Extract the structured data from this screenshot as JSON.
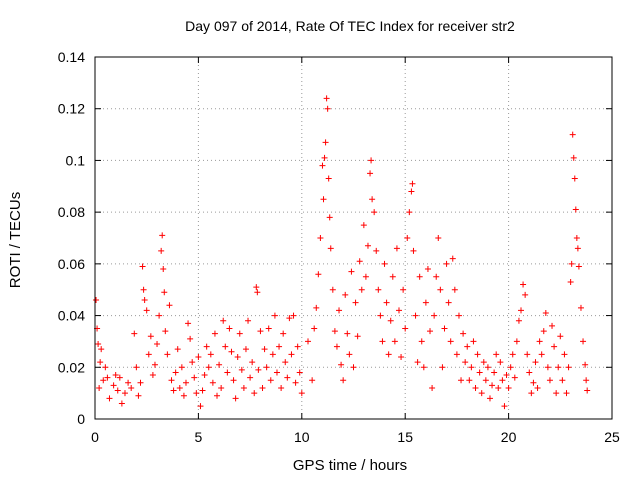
{
  "chart_data": {
    "type": "scatter",
    "title": "Day 097 of 2014, Rate Of TEC Index for receiver str2",
    "xlabel": "GPS time / hours",
    "ylabel": "ROTI / TECUs",
    "xlim": [
      0,
      25
    ],
    "ylim": [
      0,
      0.14
    ],
    "xticks": [
      0,
      5,
      10,
      15,
      20,
      25
    ],
    "xtick_labels": [
      "0",
      "5",
      "10",
      "15",
      "20",
      "25"
    ],
    "yticks": [
      0,
      0.02,
      0.04,
      0.06,
      0.08,
      0.1,
      0.12,
      0.14
    ],
    "ytick_labels": [
      "0",
      "0.02",
      "0.04",
      "0.06",
      "0.08",
      "0.1",
      "0.12",
      "0.14"
    ],
    "grid": true,
    "marker": "+",
    "series": [
      {
        "name": "ROTI",
        "color": "#ff0000",
        "points": [
          [
            0.05,
            0.046
          ],
          [
            0.1,
            0.035
          ],
          [
            0.15,
            0.029
          ],
          [
            0.2,
            0.012
          ],
          [
            0.25,
            0.022
          ],
          [
            0.3,
            0.027
          ],
          [
            0.4,
            0.015
          ],
          [
            0.5,
            0.02
          ],
          [
            0.6,
            0.016
          ],
          [
            0.7,
            0.008
          ],
          [
            0.9,
            0.013
          ],
          [
            1.0,
            0.017
          ],
          [
            1.1,
            0.011
          ],
          [
            1.2,
            0.016
          ],
          [
            1.3,
            0.006
          ],
          [
            1.45,
            0.01
          ],
          [
            1.6,
            0.014
          ],
          [
            1.75,
            0.012
          ],
          [
            1.9,
            0.033
          ],
          [
            2.0,
            0.02
          ],
          [
            2.1,
            0.009
          ],
          [
            2.2,
            0.014
          ],
          [
            2.3,
            0.059
          ],
          [
            2.35,
            0.05
          ],
          [
            2.4,
            0.046
          ],
          [
            2.5,
            0.042
          ],
          [
            2.6,
            0.025
          ],
          [
            2.7,
            0.032
          ],
          [
            2.8,
            0.017
          ],
          [
            2.9,
            0.021
          ],
          [
            3.0,
            0.029
          ],
          [
            3.1,
            0.04
          ],
          [
            3.2,
            0.065
          ],
          [
            3.25,
            0.071
          ],
          [
            3.3,
            0.058
          ],
          [
            3.35,
            0.049
          ],
          [
            3.4,
            0.034
          ],
          [
            3.5,
            0.025
          ],
          [
            3.6,
            0.044
          ],
          [
            3.7,
            0.015
          ],
          [
            3.8,
            0.011
          ],
          [
            3.9,
            0.018
          ],
          [
            4.0,
            0.027
          ],
          [
            4.1,
            0.012
          ],
          [
            4.2,
            0.02
          ],
          [
            4.3,
            0.009
          ],
          [
            4.4,
            0.014
          ],
          [
            4.5,
            0.037
          ],
          [
            4.6,
            0.031
          ],
          [
            4.7,
            0.022
          ],
          [
            4.8,
            0.016
          ],
          [
            4.9,
            0.01
          ],
          [
            5.0,
            0.024
          ],
          [
            5.1,
            0.005
          ],
          [
            5.2,
            0.011
          ],
          [
            5.3,
            0.017
          ],
          [
            5.4,
            0.028
          ],
          [
            5.5,
            0.02
          ],
          [
            5.6,
            0.025
          ],
          [
            5.7,
            0.014
          ],
          [
            5.8,
            0.033
          ],
          [
            5.9,
            0.009
          ],
          [
            6.0,
            0.021
          ],
          [
            6.1,
            0.012
          ],
          [
            6.2,
            0.038
          ],
          [
            6.3,
            0.028
          ],
          [
            6.4,
            0.018
          ],
          [
            6.5,
            0.035
          ],
          [
            6.6,
            0.026
          ],
          [
            6.7,
            0.015
          ],
          [
            6.8,
            0.008
          ],
          [
            6.9,
            0.024
          ],
          [
            7.0,
            0.033
          ],
          [
            7.1,
            0.019
          ],
          [
            7.2,
            0.012
          ],
          [
            7.3,
            0.027
          ],
          [
            7.4,
            0.038
          ],
          [
            7.5,
            0.016
          ],
          [
            7.6,
            0.022
          ],
          [
            7.7,
            0.01
          ],
          [
            7.8,
            0.051
          ],
          [
            7.85,
            0.049
          ],
          [
            7.9,
            0.019
          ],
          [
            8.0,
            0.034
          ],
          [
            8.1,
            0.012
          ],
          [
            8.2,
            0.027
          ],
          [
            8.3,
            0.02
          ],
          [
            8.4,
            0.035
          ],
          [
            8.5,
            0.015
          ],
          [
            8.6,
            0.025
          ],
          [
            8.7,
            0.04
          ],
          [
            8.8,
            0.018
          ],
          [
            8.9,
            0.028
          ],
          [
            9.0,
            0.012
          ],
          [
            9.1,
            0.033
          ],
          [
            9.2,
            0.022
          ],
          [
            9.3,
            0.016
          ],
          [
            9.4,
            0.039
          ],
          [
            9.5,
            0.025
          ],
          [
            9.6,
            0.04
          ],
          [
            9.7,
            0.014
          ],
          [
            9.8,
            0.028
          ],
          [
            9.9,
            0.018
          ],
          [
            10.0,
            0.01
          ],
          [
            10.3,
            0.03
          ],
          [
            10.5,
            0.015
          ],
          [
            10.6,
            0.035
          ],
          [
            10.7,
            0.043
          ],
          [
            10.8,
            0.056
          ],
          [
            10.9,
            0.07
          ],
          [
            11.0,
            0.098
          ],
          [
            11.05,
            0.085
          ],
          [
            11.1,
            0.101
          ],
          [
            11.15,
            0.107
          ],
          [
            11.2,
            0.124
          ],
          [
            11.25,
            0.12
          ],
          [
            11.3,
            0.093
          ],
          [
            11.35,
            0.078
          ],
          [
            11.4,
            0.066
          ],
          [
            11.5,
            0.05
          ],
          [
            11.6,
            0.034
          ],
          [
            11.7,
            0.028
          ],
          [
            11.8,
            0.042
          ],
          [
            11.9,
            0.021
          ],
          [
            12.0,
            0.015
          ],
          [
            12.1,
            0.048
          ],
          [
            12.2,
            0.033
          ],
          [
            12.3,
            0.025
          ],
          [
            12.4,
            0.057
          ],
          [
            12.5,
            0.02
          ],
          [
            12.6,
            0.045
          ],
          [
            12.7,
            0.032
          ],
          [
            12.8,
            0.061
          ],
          [
            12.9,
            0.05
          ],
          [
            13.0,
            0.075
          ],
          [
            13.1,
            0.055
          ],
          [
            13.2,
            0.067
          ],
          [
            13.3,
            0.095
          ],
          [
            13.35,
            0.1
          ],
          [
            13.4,
            0.085
          ],
          [
            13.5,
            0.08
          ],
          [
            13.6,
            0.065
          ],
          [
            13.7,
            0.05
          ],
          [
            13.8,
            0.04
          ],
          [
            13.9,
            0.03
          ],
          [
            14.0,
            0.06
          ],
          [
            14.1,
            0.045
          ],
          [
            14.2,
            0.025
          ],
          [
            14.3,
            0.038
          ],
          [
            14.4,
            0.055
          ],
          [
            14.5,
            0.03
          ],
          [
            14.6,
            0.066
          ],
          [
            14.7,
            0.042
          ],
          [
            14.8,
            0.024
          ],
          [
            14.9,
            0.05
          ],
          [
            15.0,
            0.035
          ],
          [
            15.1,
            0.07
          ],
          [
            15.2,
            0.08
          ],
          [
            15.3,
            0.088
          ],
          [
            15.35,
            0.091
          ],
          [
            15.4,
            0.065
          ],
          [
            15.5,
            0.04
          ],
          [
            15.6,
            0.022
          ],
          [
            15.7,
            0.055
          ],
          [
            15.8,
            0.03
          ],
          [
            15.9,
            0.02
          ],
          [
            16.0,
            0.045
          ],
          [
            16.1,
            0.058
          ],
          [
            16.2,
            0.034
          ],
          [
            16.3,
            0.012
          ],
          [
            16.4,
            0.04
          ],
          [
            16.5,
            0.055
          ],
          [
            16.6,
            0.07
          ],
          [
            16.7,
            0.05
          ],
          [
            16.8,
            0.02
          ],
          [
            16.9,
            0.035
          ],
          [
            17.0,
            0.06
          ],
          [
            17.1,
            0.045
          ],
          [
            17.2,
            0.03
          ],
          [
            17.3,
            0.062
          ],
          [
            17.4,
            0.05
          ],
          [
            17.5,
            0.025
          ],
          [
            17.6,
            0.04
          ],
          [
            17.7,
            0.015
          ],
          [
            17.8,
            0.033
          ],
          [
            17.9,
            0.022
          ],
          [
            18.0,
            0.028
          ],
          [
            18.1,
            0.015
          ],
          [
            18.2,
            0.02
          ],
          [
            18.3,
            0.03
          ],
          [
            18.4,
            0.012
          ],
          [
            18.5,
            0.025
          ],
          [
            18.6,
            0.018
          ],
          [
            18.7,
            0.01
          ],
          [
            18.8,
            0.022
          ],
          [
            18.9,
            0.015
          ],
          [
            19.0,
            0.02
          ],
          [
            19.1,
            0.008
          ],
          [
            19.2,
            0.013
          ],
          [
            19.3,
            0.018
          ],
          [
            19.4,
            0.025
          ],
          [
            19.5,
            0.012
          ],
          [
            19.6,
            0.022
          ],
          [
            19.7,
            0.015
          ],
          [
            19.8,
            0.005
          ],
          [
            19.9,
            0.017
          ],
          [
            20.0,
            0.012
          ],
          [
            20.1,
            0.02
          ],
          [
            20.2,
            0.025
          ],
          [
            20.3,
            0.016
          ],
          [
            20.4,
            0.03
          ],
          [
            20.5,
            0.038
          ],
          [
            20.6,
            0.042
          ],
          [
            20.7,
            0.052
          ],
          [
            20.8,
            0.048
          ],
          [
            20.9,
            0.025
          ],
          [
            21.0,
            0.018
          ],
          [
            21.1,
            0.01
          ],
          [
            21.2,
            0.014
          ],
          [
            21.3,
            0.022
          ],
          [
            21.4,
            0.012
          ],
          [
            21.5,
            0.03
          ],
          [
            21.6,
            0.025
          ],
          [
            21.7,
            0.034
          ],
          [
            21.8,
            0.041
          ],
          [
            21.9,
            0.02
          ],
          [
            22.0,
            0.015
          ],
          [
            22.1,
            0.036
          ],
          [
            22.2,
            0.028
          ],
          [
            22.3,
            0.01
          ],
          [
            22.4,
            0.02
          ],
          [
            22.5,
            0.032
          ],
          [
            22.6,
            0.015
          ],
          [
            22.7,
            0.025
          ],
          [
            22.8,
            0.01
          ],
          [
            22.9,
            0.02
          ],
          [
            23.0,
            0.053
          ],
          [
            23.05,
            0.06
          ],
          [
            23.1,
            0.11
          ],
          [
            23.15,
            0.101
          ],
          [
            23.2,
            0.093
          ],
          [
            23.25,
            0.081
          ],
          [
            23.3,
            0.07
          ],
          [
            23.35,
            0.066
          ],
          [
            23.4,
            0.059
          ],
          [
            23.5,
            0.043
          ],
          [
            23.6,
            0.03
          ],
          [
            23.7,
            0.021
          ],
          [
            23.75,
            0.015
          ],
          [
            23.8,
            0.011
          ]
        ]
      }
    ]
  }
}
